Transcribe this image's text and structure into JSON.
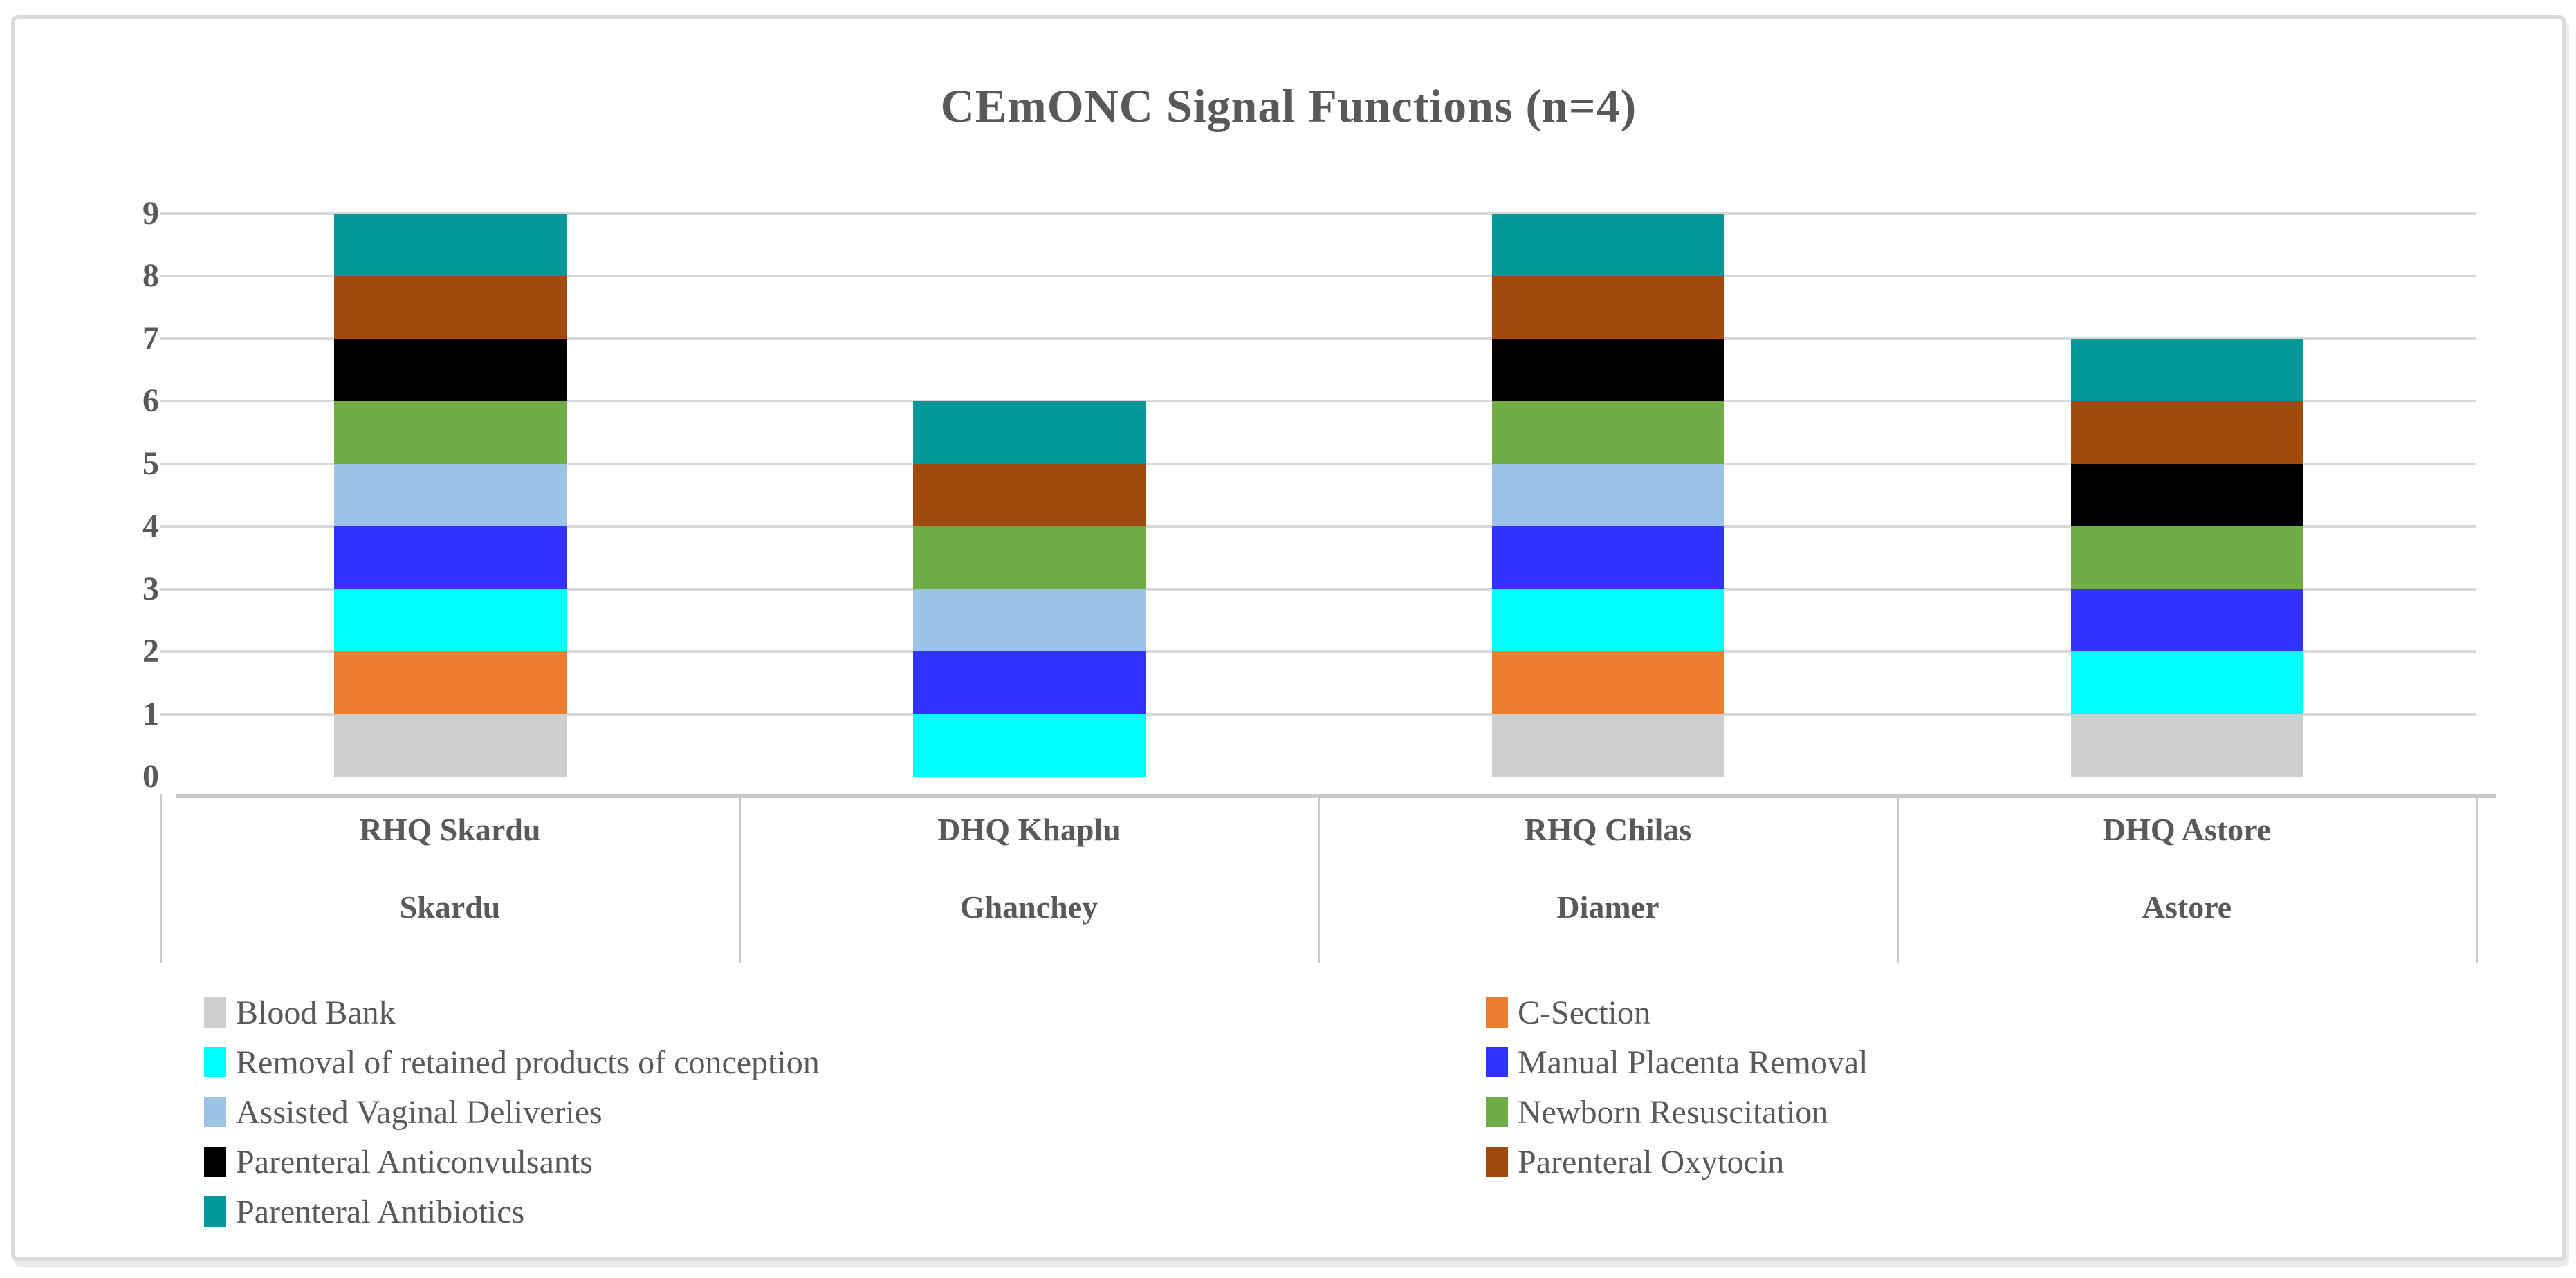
{
  "title": "CEmONC Signal Functions (n=4)",
  "y_axis": {
    "ticks": [
      "0",
      "1",
      "2",
      "3",
      "4",
      "5",
      "6",
      "7",
      "8",
      "9"
    ],
    "min": 0,
    "max": 9
  },
  "x_axis": {
    "categories": [
      {
        "facility": "RHQ Skardu",
        "district": "Skardu"
      },
      {
        "facility": "DHQ Khaplu",
        "district": "Ghanchey"
      },
      {
        "facility": "RHQ Chilas",
        "district": "Diamer"
      },
      {
        "facility": "DHQ Astore",
        "district": "Astore"
      }
    ]
  },
  "legend": {
    "columns": [
      {
        "items": [
          {
            "label": "Blood Bank",
            "color": "#D0CECE"
          },
          {
            "label": "Removal of retained products of conception",
            "color": "#00FFFF"
          },
          {
            "label": "Assisted Vaginal Deliveries",
            "color": "#9DC3E6"
          },
          {
            "label": "Parenteral Anticonvulsants",
            "color": "#000000"
          },
          {
            "label": "Parenteral Antibiotics",
            "color": "#009898"
          }
        ]
      },
      {
        "items": [
          {
            "label": "C-Section",
            "color": "#ED7D31"
          },
          {
            "label": "Manual Placenta Removal",
            "color": "#3333FF"
          },
          {
            "label": "Newborn Resuscitation",
            "color": "#70AD47"
          },
          {
            "label": "Parenteral Oxytocin",
            "color": "#A04A10"
          }
        ]
      }
    ]
  },
  "colors": {
    "text": "#595959",
    "gridline": "#D9D9D9",
    "axis_line": "#C9C9C9",
    "frame_border": "#DBDBDB"
  },
  "chart_data": {
    "type": "bar",
    "stacked": true,
    "title": "CEmONC Signal Functions (n=4)",
    "categories": [
      "RHQ Skardu",
      "DHQ Khaplu",
      "RHQ Chilas",
      "DHQ Astore"
    ],
    "category_districts": [
      "Skardu",
      "Ghanchey",
      "Diamer",
      "Astore"
    ],
    "series": [
      {
        "name": "Blood Bank",
        "color": "#D0CECE",
        "values": [
          1,
          0,
          1,
          1
        ]
      },
      {
        "name": "C-Section",
        "color": "#ED7D31",
        "values": [
          1,
          0,
          1,
          0
        ]
      },
      {
        "name": "Removal of retained products of conception",
        "color": "#00FFFF",
        "values": [
          1,
          1,
          1,
          1
        ]
      },
      {
        "name": "Manual Placenta Removal",
        "color": "#3333FF",
        "values": [
          1,
          1,
          1,
          1
        ]
      },
      {
        "name": "Assisted Vaginal Deliveries",
        "color": "#9DC3E6",
        "values": [
          1,
          1,
          1,
          0
        ]
      },
      {
        "name": "Newborn Resuscitation",
        "color": "#70AD47",
        "values": [
          1,
          1,
          1,
          1
        ]
      },
      {
        "name": "Parenteral Anticonvulsants",
        "color": "#000000",
        "values": [
          1,
          0,
          1,
          1
        ]
      },
      {
        "name": "Parenteral Oxytocin",
        "color": "#A04A10",
        "values": [
          1,
          1,
          1,
          1
        ]
      },
      {
        "name": "Parenteral Antibiotics",
        "color": "#009898",
        "values": [
          1,
          1,
          1,
          1
        ]
      }
    ],
    "totals": [
      9,
      6,
      9,
      7
    ],
    "ylim": [
      0,
      9
    ],
    "grid": true,
    "legend_position": "bottom"
  }
}
